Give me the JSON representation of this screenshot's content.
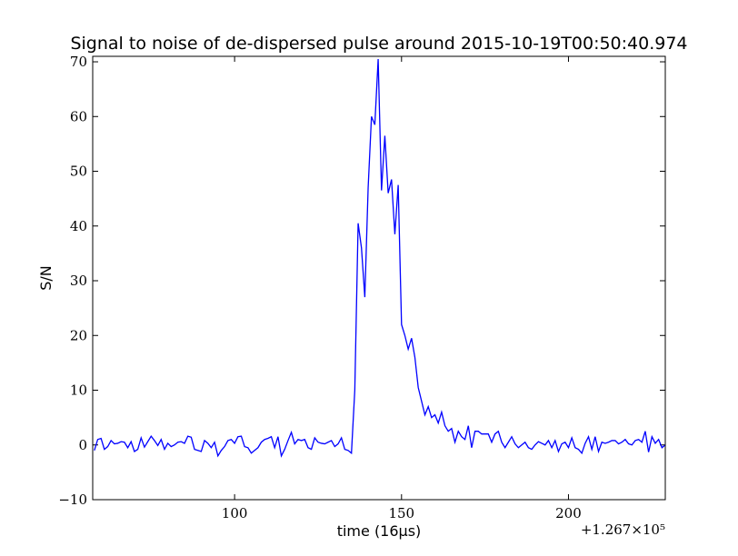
{
  "chart_data": {
    "type": "line",
    "title": "Signal to noise of de-dispersed pulse around 2015-10-19T00:50:40.974",
    "x_label": "time (16μs)",
    "y_label": "S/N",
    "x_offset_label": "+1.267×10⁵",
    "x": [
      58,
      59,
      60,
      61,
      62,
      63,
      64,
      65,
      66,
      67,
      68,
      69,
      70,
      71,
      72,
      73,
      74,
      75,
      76,
      77,
      78,
      79,
      80,
      81,
      82,
      83,
      84,
      85,
      86,
      87,
      88,
      89,
      90,
      91,
      92,
      93,
      94,
      95,
      96,
      97,
      98,
      99,
      100,
      101,
      102,
      103,
      104,
      105,
      106,
      107,
      108,
      109,
      110,
      111,
      112,
      113,
      114,
      115,
      116,
      117,
      118,
      119,
      120,
      121,
      122,
      123,
      124,
      125,
      126,
      127,
      128,
      129,
      130,
      131,
      132,
      133,
      134,
      135,
      136,
      137,
      138,
      139,
      140,
      141,
      142,
      143,
      144,
      145,
      146,
      147,
      148,
      149,
      150,
      151,
      152,
      153,
      154,
      155,
      156,
      157,
      158,
      159,
      160,
      161,
      162,
      163,
      164,
      165,
      166,
      167,
      168,
      169,
      170,
      171,
      172,
      173,
      174,
      175,
      176,
      177,
      178,
      179,
      180,
      181,
      182,
      183,
      184,
      185,
      186,
      187,
      188,
      189,
      190,
      191,
      192,
      193,
      194,
      195,
      196,
      197,
      198,
      199,
      200,
      201,
      202,
      203,
      204,
      205,
      206,
      207,
      208,
      209,
      210,
      211,
      212,
      213,
      214,
      215,
      216,
      217,
      218,
      219,
      220,
      221,
      222,
      223,
      224,
      225,
      226,
      227,
      228,
      229
    ],
    "series": [
      {
        "name": "S/N",
        "color": "#0000ff",
        "values": [
          -1,
          1,
          1.2,
          -0.8,
          -0.3,
          0.8,
          0.2,
          0.3,
          0.6,
          0.5,
          -0.5,
          0.6,
          -1.2,
          -0.8,
          1.3,
          -0.4,
          0.6,
          1.6,
          0.8,
          -0.1,
          1,
          -0.8,
          0.3,
          -0.3,
          0,
          0.5,
          0.6,
          0.3,
          1.6,
          1.4,
          -0.8,
          -1,
          -1.2,
          0.8,
          0.3,
          -0.5,
          0.5,
          -2,
          -1,
          -0.3,
          0.8,
          1,
          0.3,
          1.5,
          1.6,
          -0.3,
          -0.5,
          -1.5,
          -1,
          -0.5,
          0.5,
          1,
          1.2,
          1.5,
          -0.5,
          1.5,
          -2,
          -0.8,
          0.8,
          2.3,
          0.2,
          1,
          0.8,
          1,
          -0.5,
          -0.8,
          1.3,
          0.5,
          0.3,
          0.2,
          0.5,
          0.8,
          -0.3,
          0.2,
          1.3,
          -0.8,
          -1,
          -1.5,
          10,
          40.5,
          36,
          27,
          47,
          60,
          58.5,
          70.5,
          46.5,
          56.5,
          46,
          48.5,
          38.5,
          47.5,
          22,
          20,
          17.5,
          19.5,
          16,
          10.5,
          8,
          5.5,
          7,
          5,
          5.5,
          4,
          6,
          3.5,
          2.5,
          3,
          0.5,
          2.5,
          1.5,
          1,
          3.5,
          -0.5,
          2.5,
          2.5,
          2,
          2,
          2,
          0.5,
          2,
          2.5,
          0.5,
          -0.5,
          0.5,
          1.5,
          0.2,
          -0.5,
          0,
          0.5,
          -0.5,
          -0.8,
          0,
          0.6,
          0.3,
          0,
          0.8,
          -0.5,
          0.8,
          -1.2,
          0.2,
          0.5,
          -0.5,
          1.3,
          -0.5,
          -0.8,
          -1.5,
          0.3,
          1.5,
          -0.8,
          1.5,
          -1.2,
          0.5,
          0.3,
          0.5,
          0.8,
          0.8,
          0.2,
          0.5,
          1,
          0.2,
          0,
          0.8,
          1,
          0.5,
          2.5,
          -1.3,
          1.5,
          0.3,
          1,
          -0.5,
          0
        ]
      }
    ],
    "xlim": [
      57.5,
      229
    ],
    "ylim": [
      -10,
      71
    ],
    "xticks": [
      100,
      150,
      200
    ],
    "yticks": [
      {
        "value": -10,
        "label": "−10"
      },
      0,
      10,
      20,
      30,
      40,
      50,
      60,
      70
    ]
  }
}
